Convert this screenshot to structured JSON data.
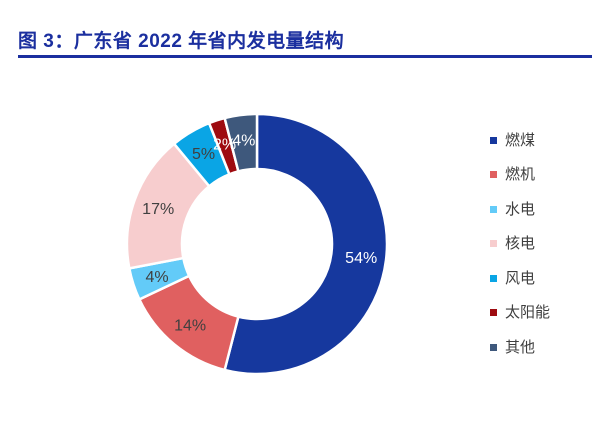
{
  "figure": {
    "title": "图 3：广东省 2022 年省内发电量结构"
  },
  "style": {
    "accent_color": "#1B2F9F",
    "background_color": "#FFFFFF",
    "legend_text_color": "#3F3F3F",
    "dark_label_color": "#404040",
    "light_label_color": "#FFFFFF"
  },
  "chart_data": {
    "type": "pie",
    "subtype": "donut",
    "title": "广东省 2022 年省内发电量结构",
    "unit": "percent",
    "direction": "clockwise",
    "start_angle_deg": 0,
    "donut_hole_ratio": 0.58,
    "legend_position": "right",
    "slices": [
      {
        "key": "coal",
        "label": "燃煤",
        "value": 54,
        "display": "54%",
        "color": "#16389E",
        "label_color": "#FFFFFF"
      },
      {
        "key": "gas-turbine",
        "label": "燃机",
        "value": 14,
        "display": "14%",
        "color": "#E06060",
        "label_color": "#404040"
      },
      {
        "key": "hydro",
        "label": "水电",
        "value": 4,
        "display": "4%",
        "color": "#63CBF8",
        "label_color": "#404040"
      },
      {
        "key": "nuclear",
        "label": "核电",
        "value": 17,
        "display": "17%",
        "color": "#F7CDCE",
        "label_color": "#404040"
      },
      {
        "key": "wind",
        "label": "风电",
        "value": 5,
        "display": "5%",
        "color": "#0AA5E5",
        "label_color": "#404040"
      },
      {
        "key": "solar",
        "label": "太阳能",
        "value": 2,
        "display": "2%",
        "color": "#9E0B10",
        "label_color": "#FFFFFF"
      },
      {
        "key": "other",
        "label": "其他",
        "value": 4,
        "display": "4%",
        "color": "#3E587C",
        "label_color": "#FFFFFF"
      }
    ]
  }
}
